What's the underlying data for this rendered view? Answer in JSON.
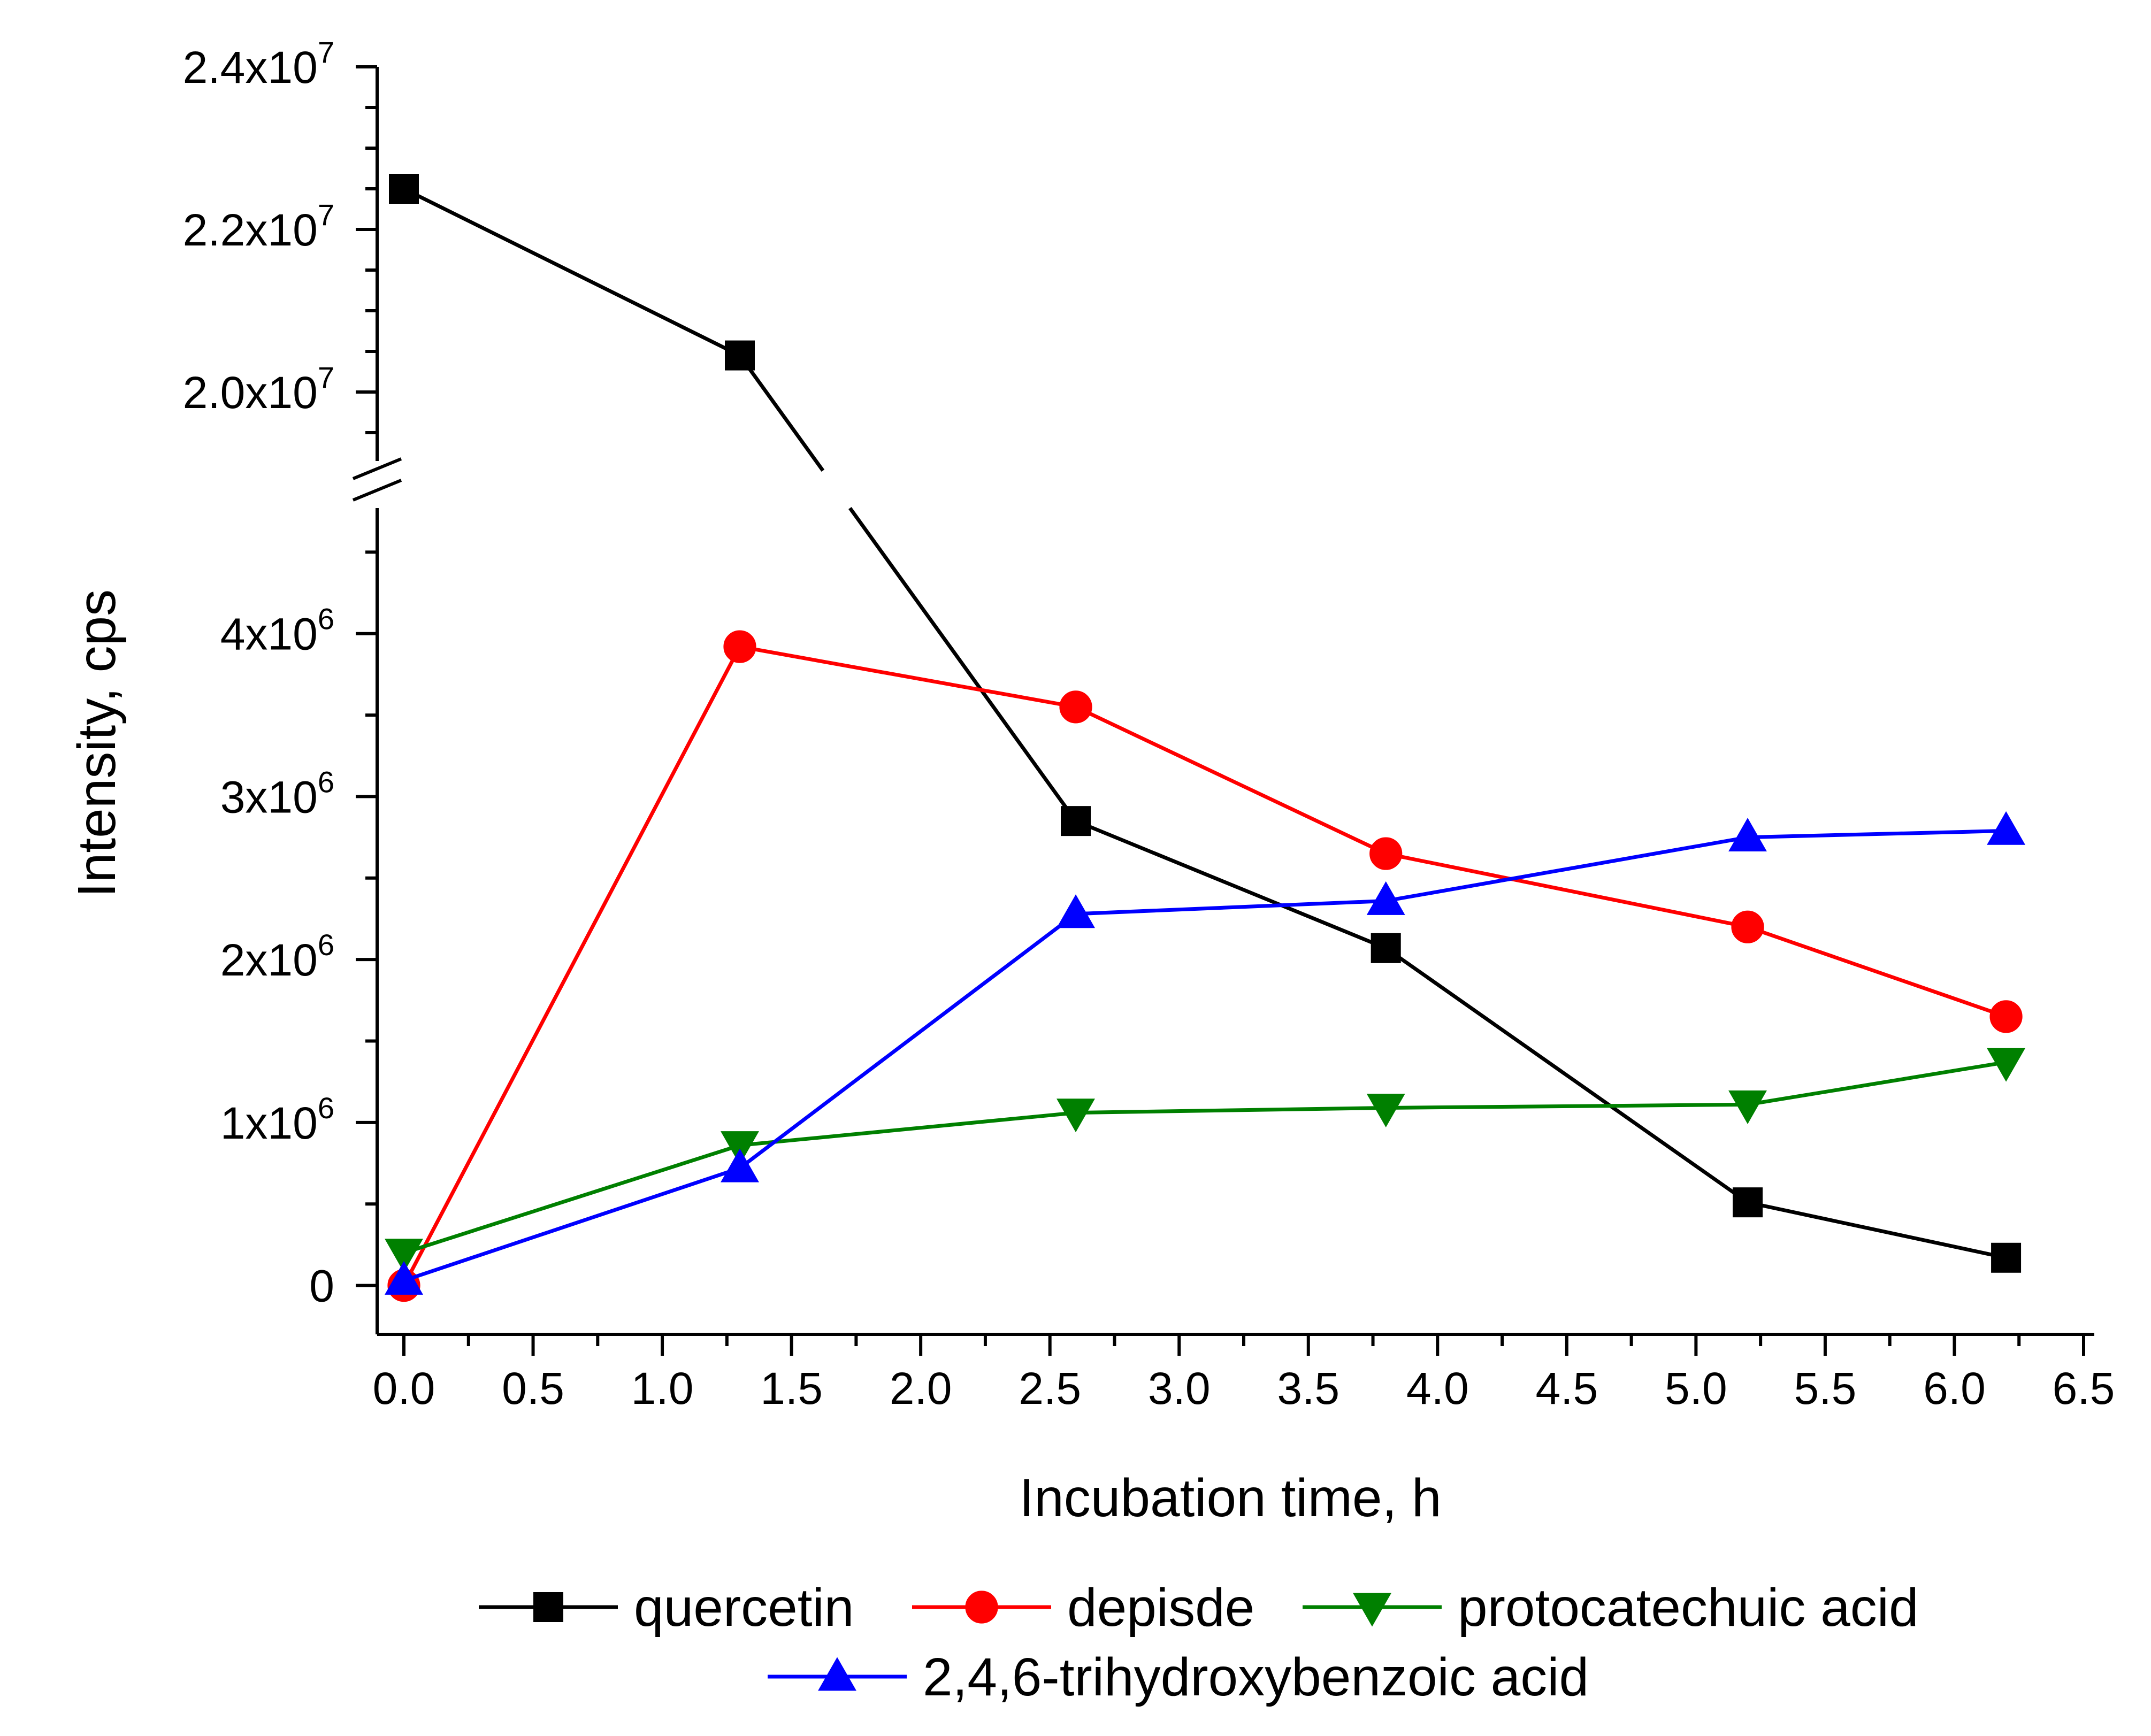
{
  "chart_data": {
    "type": "line",
    "title": "",
    "xlabel": "Incubation time, h",
    "ylabel": "Intensity, cps",
    "xlim": [
      -0.1,
      6.5
    ],
    "x_ticks": [
      "0.0",
      "0.5",
      "1.0",
      "1.5",
      "2.0",
      "2.5",
      "3.0",
      "3.5",
      "4.0",
      "4.5",
      "5.0",
      "5.5",
      "6.0",
      "6.5"
    ],
    "y_axis_break": {
      "lower_range": [
        -300000,
        5000000
      ],
      "upper_range": [
        19000000,
        24000000
      ]
    },
    "y_ticks_lower": [
      {
        "value": 0,
        "mantissa": "0",
        "exponent": ""
      },
      {
        "value": 1000000,
        "mantissa": "1x10",
        "exponent": "6"
      },
      {
        "value": 2000000,
        "mantissa": "2x10",
        "exponent": "6"
      },
      {
        "value": 3000000,
        "mantissa": "3x10",
        "exponent": "6"
      },
      {
        "value": 4000000,
        "mantissa": "4x10",
        "exponent": "6"
      }
    ],
    "y_ticks_upper": [
      {
        "value": 20000000,
        "mantissa": "2.0x10",
        "exponent": "7"
      },
      {
        "value": 22000000,
        "mantissa": "2.2x10",
        "exponent": "7"
      },
      {
        "value": 24000000,
        "mantissa": "2.4x10",
        "exponent": "7"
      }
    ],
    "x": [
      0,
      1.3,
      2.6,
      3.8,
      5.2,
      6.2
    ],
    "series": [
      {
        "name": "quercetin",
        "color": "#000000",
        "marker": "square",
        "values": [
          22500000,
          20450000,
          2850000,
          2070000,
          510000,
          170000
        ]
      },
      {
        "name": "depisde",
        "color": "#ff0000",
        "marker": "circle",
        "values": [
          0,
          3920000,
          3550000,
          2650000,
          2200000,
          1650000
        ]
      },
      {
        "name": "protocatechuic acid",
        "color": "#008000",
        "marker": "triangle-down",
        "values": [
          200000,
          860000,
          1060000,
          1090000,
          1110000,
          1370000
        ]
      },
      {
        "name": "2,4,6-trihydroxybenzoic acid",
        "color": "#0000ff",
        "marker": "triangle-up",
        "values": [
          30000,
          720000,
          2280000,
          2360000,
          2750000,
          2790000
        ]
      }
    ],
    "legend_position": "bottom"
  }
}
